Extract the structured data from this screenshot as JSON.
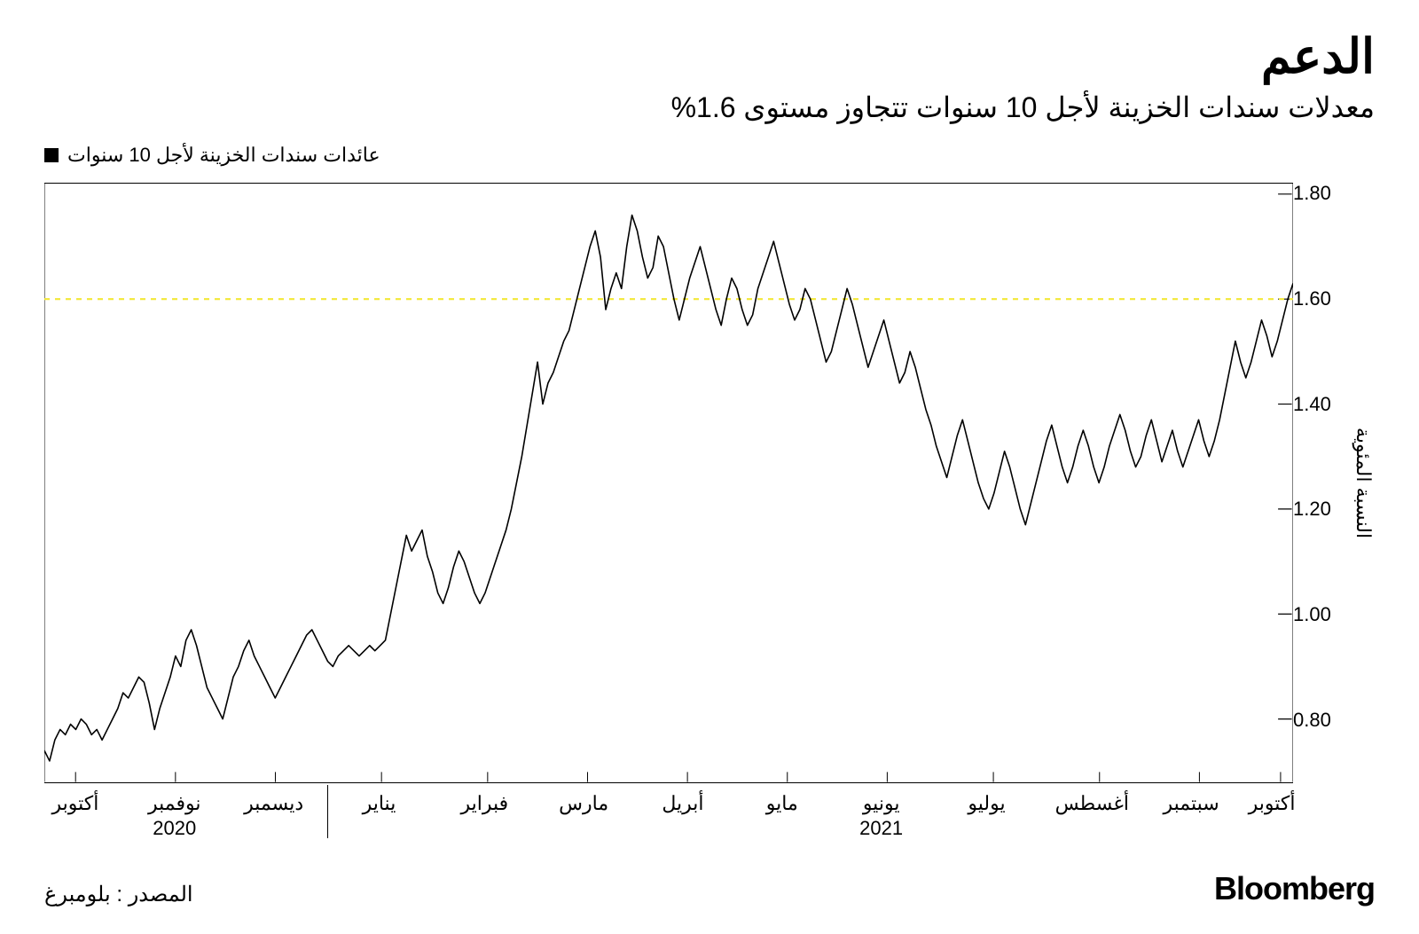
{
  "title": "الدعم",
  "subtitle": "معدلات سندات الخزينة لأجل 10 سنوات تتجاوز مستوى 1.6%",
  "legend": {
    "label": "عائدات سندات الخزينة لأجل 10 سنوات",
    "swatch_color": "#000000"
  },
  "yaxis": {
    "title": "النسبة المئوية",
    "min": 0.68,
    "max": 1.82,
    "ticks": [
      1.8,
      1.6,
      1.4,
      1.2,
      1.0,
      0.8
    ],
    "tick_labels": [
      "1.80",
      "1.60",
      "1.40",
      "1.20",
      "1.00",
      "0.80"
    ]
  },
  "xaxis": {
    "labels": [
      {
        "text": "أكتوبر",
        "pos": 0.025
      },
      {
        "text": "نوفمبر",
        "year": "2020",
        "pos": 0.105
      },
      {
        "text": "ديسمبر",
        "pos": 0.185
      },
      {
        "text": "يناير",
        "pos": 0.27
      },
      {
        "text": "فبراير",
        "pos": 0.355
      },
      {
        "text": "مارس",
        "pos": 0.435
      },
      {
        "text": "أبريل",
        "pos": 0.515
      },
      {
        "text": "مايو",
        "pos": 0.595
      },
      {
        "text": "يونيو",
        "year": "2021",
        "pos": 0.675
      },
      {
        "text": "يوليو",
        "pos": 0.76
      },
      {
        "text": "أغسطس",
        "pos": 0.845
      },
      {
        "text": "سبتمبر",
        "pos": 0.925
      },
      {
        "text": "أكتوبر",
        "pos": 0.99
      }
    ],
    "year_divider_pos": 0.228
  },
  "chart": {
    "type": "line",
    "line_color": "#000000",
    "line_width": 1.6,
    "background_color": "#ffffff",
    "reference_line": {
      "y": 1.6,
      "color": "#f2e837",
      "dash": "6,6",
      "width": 2.2
    },
    "grid_color": "#dddddd",
    "series": [
      0.74,
      0.72,
      0.76,
      0.78,
      0.77,
      0.79,
      0.78,
      0.8,
      0.79,
      0.77,
      0.78,
      0.76,
      0.78,
      0.8,
      0.82,
      0.85,
      0.84,
      0.86,
      0.88,
      0.87,
      0.83,
      0.78,
      0.82,
      0.85,
      0.88,
      0.92,
      0.9,
      0.95,
      0.97,
      0.94,
      0.9,
      0.86,
      0.84,
      0.82,
      0.8,
      0.84,
      0.88,
      0.9,
      0.93,
      0.95,
      0.92,
      0.9,
      0.88,
      0.86,
      0.84,
      0.86,
      0.88,
      0.9,
      0.92,
      0.94,
      0.96,
      0.97,
      0.95,
      0.93,
      0.91,
      0.9,
      0.92,
      0.93,
      0.94,
      0.93,
      0.92,
      0.93,
      0.94,
      0.93,
      0.94,
      0.95,
      1.0,
      1.05,
      1.1,
      1.15,
      1.12,
      1.14,
      1.16,
      1.11,
      1.08,
      1.04,
      1.02,
      1.05,
      1.09,
      1.12,
      1.1,
      1.07,
      1.04,
      1.02,
      1.04,
      1.07,
      1.1,
      1.13,
      1.16,
      1.2,
      1.25,
      1.3,
      1.36,
      1.42,
      1.48,
      1.4,
      1.44,
      1.46,
      1.49,
      1.52,
      1.54,
      1.58,
      1.62,
      1.66,
      1.7,
      1.73,
      1.68,
      1.58,
      1.62,
      1.65,
      1.62,
      1.7,
      1.76,
      1.73,
      1.68,
      1.64,
      1.66,
      1.72,
      1.7,
      1.65,
      1.6,
      1.56,
      1.6,
      1.64,
      1.67,
      1.7,
      1.66,
      1.62,
      1.58,
      1.55,
      1.6,
      1.64,
      1.62,
      1.58,
      1.55,
      1.57,
      1.62,
      1.65,
      1.68,
      1.71,
      1.67,
      1.63,
      1.59,
      1.56,
      1.58,
      1.62,
      1.6,
      1.56,
      1.52,
      1.48,
      1.5,
      1.54,
      1.58,
      1.62,
      1.59,
      1.55,
      1.51,
      1.47,
      1.5,
      1.53,
      1.56,
      1.52,
      1.48,
      1.44,
      1.46,
      1.5,
      1.47,
      1.43,
      1.39,
      1.36,
      1.32,
      1.29,
      1.26,
      1.3,
      1.34,
      1.37,
      1.33,
      1.29,
      1.25,
      1.22,
      1.2,
      1.23,
      1.27,
      1.31,
      1.28,
      1.24,
      1.2,
      1.17,
      1.21,
      1.25,
      1.29,
      1.33,
      1.36,
      1.32,
      1.28,
      1.25,
      1.28,
      1.32,
      1.35,
      1.32,
      1.28,
      1.25,
      1.28,
      1.32,
      1.35,
      1.38,
      1.35,
      1.31,
      1.28,
      1.3,
      1.34,
      1.37,
      1.33,
      1.29,
      1.32,
      1.35,
      1.31,
      1.28,
      1.31,
      1.34,
      1.37,
      1.33,
      1.3,
      1.33,
      1.37,
      1.42,
      1.47,
      1.52,
      1.48,
      1.45,
      1.48,
      1.52,
      1.56,
      1.53,
      1.49,
      1.52,
      1.56,
      1.6,
      1.63
    ]
  },
  "footer": {
    "source": "المصدر : بلومبرغ",
    "brand": "Bloomberg"
  }
}
